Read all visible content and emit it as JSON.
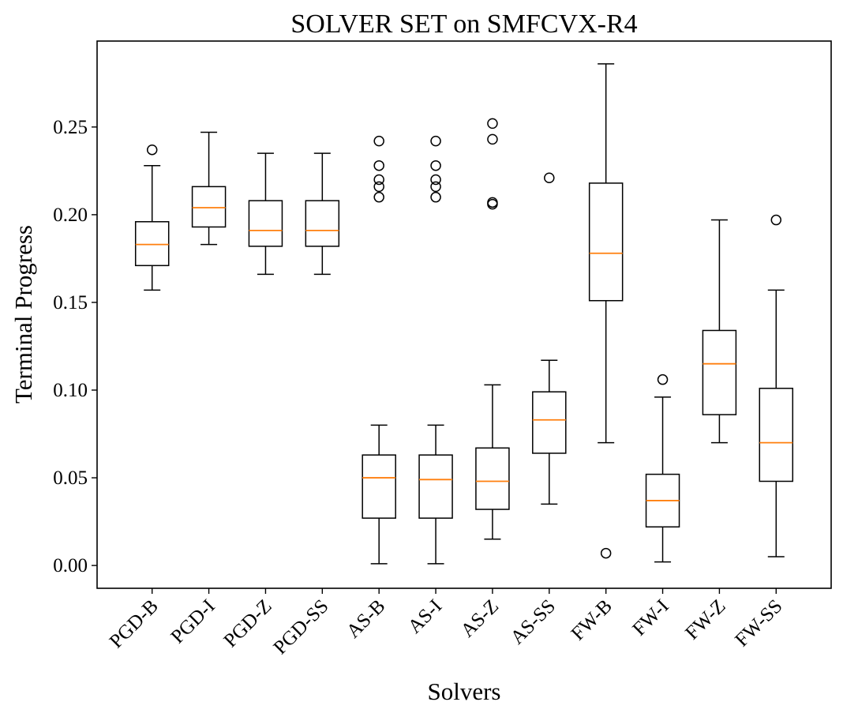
{
  "chart_data": {
    "type": "box",
    "title": "SOLVER SET on SMFCVX-R4",
    "xlabel": "Solvers",
    "ylabel": "Terminal Progress",
    "ylim": [
      -0.013,
      0.299
    ],
    "yticks": [
      "0.00",
      "0.05",
      "0.10",
      "0.15",
      "0.20",
      "0.25"
    ],
    "grid": false,
    "box_color": "#000000",
    "median_color": "#ff7f0e",
    "categories": [
      "PGD-B",
      "PGD-I",
      "PGD-Z",
      "PGD-SS",
      "AS-B",
      "AS-I",
      "AS-Z",
      "AS-SS",
      "FW-B",
      "FW-I",
      "FW-Z",
      "FW-SS"
    ],
    "boxes": [
      {
        "label": "PGD-B",
        "whisker_low": 0.157,
        "q1": 0.171,
        "median": 0.183,
        "q3": 0.196,
        "whisker_high": 0.228,
        "fliers": [
          0.237
        ]
      },
      {
        "label": "PGD-I",
        "whisker_low": 0.183,
        "q1": 0.193,
        "median": 0.204,
        "q3": 0.216,
        "whisker_high": 0.247,
        "fliers": []
      },
      {
        "label": "PGD-Z",
        "whisker_low": 0.166,
        "q1": 0.182,
        "median": 0.191,
        "q3": 0.208,
        "whisker_high": 0.235,
        "fliers": []
      },
      {
        "label": "PGD-SS",
        "whisker_low": 0.166,
        "q1": 0.182,
        "median": 0.191,
        "q3": 0.208,
        "whisker_high": 0.235,
        "fliers": []
      },
      {
        "label": "AS-B",
        "whisker_low": 0.001,
        "q1": 0.027,
        "median": 0.05,
        "q3": 0.063,
        "whisker_high": 0.08,
        "fliers": [
          0.242,
          0.228,
          0.22,
          0.216,
          0.21
        ]
      },
      {
        "label": "AS-I",
        "whisker_low": 0.001,
        "q1": 0.027,
        "median": 0.049,
        "q3": 0.063,
        "whisker_high": 0.08,
        "fliers": [
          0.242,
          0.228,
          0.22,
          0.216,
          0.21
        ]
      },
      {
        "label": "AS-Z",
        "whisker_low": 0.015,
        "q1": 0.032,
        "median": 0.048,
        "q3": 0.067,
        "whisker_high": 0.103,
        "fliers": [
          0.252,
          0.243,
          0.207,
          0.206
        ]
      },
      {
        "label": "AS-SS",
        "whisker_low": 0.035,
        "q1": 0.064,
        "median": 0.083,
        "q3": 0.099,
        "whisker_high": 0.117,
        "fliers": [
          0.221
        ]
      },
      {
        "label": "FW-B",
        "whisker_low": 0.07,
        "q1": 0.151,
        "median": 0.178,
        "q3": 0.218,
        "whisker_high": 0.286,
        "fliers": [
          0.007
        ]
      },
      {
        "label": "FW-I",
        "whisker_low": 0.002,
        "q1": 0.022,
        "median": 0.037,
        "q3": 0.052,
        "whisker_high": 0.096,
        "fliers": [
          0.106
        ]
      },
      {
        "label": "FW-Z",
        "whisker_low": 0.07,
        "q1": 0.086,
        "median": 0.115,
        "q3": 0.134,
        "whisker_high": 0.197,
        "fliers": []
      },
      {
        "label": "FW-SS",
        "whisker_low": 0.005,
        "q1": 0.048,
        "median": 0.07,
        "q3": 0.101,
        "whisker_high": 0.157,
        "fliers": [
          0.197
        ]
      }
    ]
  }
}
